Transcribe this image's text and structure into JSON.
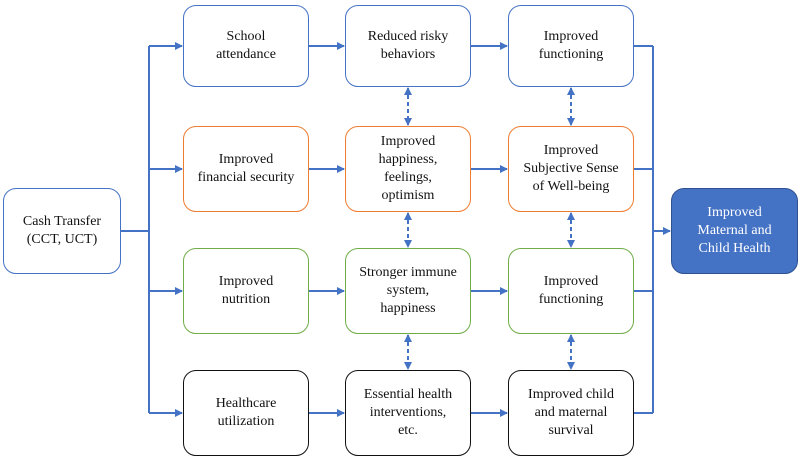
{
  "colors": {
    "blue": "#4472C4",
    "orange": "#ED7D31",
    "green": "#70AD47",
    "black": "#111111",
    "final_fill": "#4472C4"
  },
  "source": {
    "label": "Cash Transfer\n(CCT, UCT)"
  },
  "rows": [
    {
      "color": "blue",
      "boxes": [
        "School\nattendance",
        "Reduced risky\nbehaviors",
        "Improved\nfunctioning"
      ]
    },
    {
      "color": "orange",
      "boxes": [
        "Improved\nfinancial security",
        "Improved\nhappiness,\nfeelings,\noptimism",
        "Improved\nSubjective Sense\nof Well-being"
      ]
    },
    {
      "color": "green",
      "boxes": [
        "Improved\nnutrition",
        "Stronger immune\nsystem,\nhappiness",
        "Improved\nfunctioning"
      ]
    },
    {
      "color": "black",
      "boxes": [
        "Healthcare\nutilization",
        "Essential health\ninterventions,\netc.",
        "Improved child\nand maternal\nsurvival"
      ]
    }
  ],
  "outcome": {
    "label": "Improved\nMaternal and\nChild Health"
  }
}
